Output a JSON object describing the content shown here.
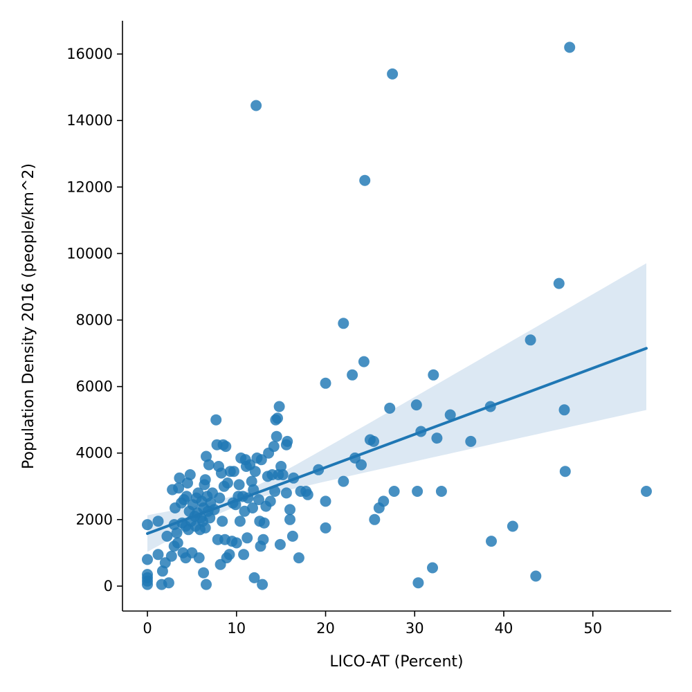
{
  "chart_data": {
    "type": "scatter",
    "title": "",
    "xlabel": "LICO-AT (Percent)",
    "ylabel": "Population Density 2016 (people/km^2)",
    "xlim": [
      -2.8,
      58.8
    ],
    "ylim": [
      -750,
      17000
    ],
    "xticks": [
      0,
      10,
      20,
      30,
      40,
      50
    ],
    "yticks": [
      0,
      2000,
      4000,
      6000,
      8000,
      10000,
      12000,
      14000,
      16000
    ],
    "grid": false,
    "legend": "none",
    "colors": {
      "points": "#1f77b4",
      "line": "#1f77b4",
      "band": "#dce8f3"
    },
    "series": [
      {
        "points": [
          [
            0,
            50
          ],
          [
            0,
            150
          ],
          [
            0,
            250
          ],
          [
            0,
            350
          ],
          [
            0,
            800
          ],
          [
            0,
            1850
          ],
          [
            1.2,
            950
          ],
          [
            1.2,
            1950
          ],
          [
            1.6,
            50
          ],
          [
            1.7,
            450
          ],
          [
            2,
            700
          ],
          [
            2.2,
            1500
          ],
          [
            2.4,
            100
          ],
          [
            2.7,
            900
          ],
          [
            2.8,
            2900
          ],
          [
            3,
            1200
          ],
          [
            3,
            1850
          ],
          [
            3.1,
            2350
          ],
          [
            3.3,
            1600
          ],
          [
            3.4,
            1300
          ],
          [
            3.5,
            2950
          ],
          [
            3.6,
            3250
          ],
          [
            3.8,
            2500
          ],
          [
            3.9,
            1900
          ],
          [
            4,
            1000
          ],
          [
            4.1,
            2600
          ],
          [
            4.3,
            850
          ],
          [
            4.3,
            1800
          ],
          [
            4.4,
            2700
          ],
          [
            4.5,
            3100
          ],
          [
            4.6,
            1700
          ],
          [
            4.7,
            2250
          ],
          [
            4.8,
            3350
          ],
          [
            4.9,
            1950
          ],
          [
            5,
            1000
          ],
          [
            5.1,
            2450
          ],
          [
            5.3,
            2100
          ],
          [
            5.4,
            1800
          ],
          [
            5.5,
            2650
          ],
          [
            5.6,
            2200
          ],
          [
            5.7,
            2800
          ],
          [
            5.8,
            850
          ],
          [
            5.9,
            1700
          ],
          [
            6,
            2050
          ],
          [
            6.1,
            2550
          ],
          [
            6.2,
            1950
          ],
          [
            6.3,
            400
          ],
          [
            6.3,
            2350
          ],
          [
            6.4,
            3050
          ],
          [
            6.5,
            1750
          ],
          [
            6.5,
            3200
          ],
          [
            6.6,
            3900
          ],
          [
            6.6,
            50
          ],
          [
            6.7,
            2700
          ],
          [
            6.8,
            2250
          ],
          [
            6.9,
            3650
          ],
          [
            7,
            2050
          ],
          [
            7.1,
            2500
          ],
          [
            7.3,
            2800
          ],
          [
            7.5,
            2300
          ],
          [
            7.7,
            5000
          ],
          [
            7.8,
            4250
          ],
          [
            7.9,
            1400
          ],
          [
            8,
            3600
          ],
          [
            8.1,
            2650
          ],
          [
            8.2,
            650
          ],
          [
            8.3,
            3400
          ],
          [
            8.4,
            1950
          ],
          [
            8.5,
            4250
          ],
          [
            8.6,
            3000
          ],
          [
            8.7,
            1400
          ],
          [
            8.8,
            4200
          ],
          [
            8.9,
            850
          ],
          [
            9,
            3100
          ],
          [
            9.2,
            950
          ],
          [
            9.3,
            3450
          ],
          [
            9.5,
            1350
          ],
          [
            9.6,
            2500
          ],
          [
            9.7,
            3450
          ],
          [
            9.9,
            2450
          ],
          [
            10,
            1300
          ],
          [
            10.2,
            2700
          ],
          [
            10.3,
            3050
          ],
          [
            10.4,
            1950
          ],
          [
            10.5,
            3850
          ],
          [
            10.7,
            2700
          ],
          [
            10.8,
            950
          ],
          [
            10.9,
            2250
          ],
          [
            11,
            3800
          ],
          [
            11.1,
            3600
          ],
          [
            11.2,
            1450
          ],
          [
            11.3,
            2650
          ],
          [
            11.5,
            3650
          ],
          [
            11.7,
            3150
          ],
          [
            11.8,
            2350
          ],
          [
            11.9,
            2900
          ],
          [
            12,
            250
          ],
          [
            12.1,
            3450
          ],
          [
            12.3,
            3850
          ],
          [
            12.5,
            2600
          ],
          [
            12.6,
            1950
          ],
          [
            12.7,
            1200
          ],
          [
            12.8,
            3800
          ],
          [
            12.9,
            50
          ],
          [
            13,
            1400
          ],
          [
            13.1,
            1900
          ],
          [
            13.3,
            2400
          ],
          [
            13.5,
            3300
          ],
          [
            13.6,
            4000
          ],
          [
            13.8,
            2550
          ],
          [
            14,
            3350
          ],
          [
            14.2,
            4200
          ],
          [
            14.3,
            2850
          ],
          [
            14.4,
            5000
          ],
          [
            14.5,
            4500
          ],
          [
            14.6,
            5050
          ],
          [
            14.7,
            3350
          ],
          [
            14.8,
            5400
          ],
          [
            14.9,
            1250
          ],
          [
            15,
            3600
          ],
          [
            15.2,
            3350
          ],
          [
            15.6,
            2800
          ],
          [
            15.6,
            4250
          ],
          [
            15.7,
            4350
          ],
          [
            16,
            2000
          ],
          [
            16,
            2300
          ],
          [
            16.3,
            1500
          ],
          [
            16.4,
            3250
          ],
          [
            17,
            850
          ],
          [
            17.2,
            2850
          ],
          [
            17.8,
            2850
          ],
          [
            18,
            2750
          ],
          [
            19.2,
            3500
          ],
          [
            20,
            6100
          ],
          [
            20,
            2550
          ],
          [
            20,
            1750
          ],
          [
            22,
            7900
          ],
          [
            22,
            3150
          ],
          [
            23,
            6350
          ],
          [
            23.3,
            3850
          ],
          [
            24,
            3650
          ],
          [
            24.3,
            6750
          ],
          [
            25,
            4400
          ],
          [
            25.4,
            4350
          ],
          [
            25.5,
            2000
          ],
          [
            26,
            2350
          ],
          [
            26.5,
            2550
          ],
          [
            27.2,
            5350
          ],
          [
            27.7,
            2850
          ],
          [
            30.2,
            5450
          ],
          [
            30.3,
            2850
          ],
          [
            30.4,
            100
          ],
          [
            30.7,
            4650
          ],
          [
            32,
            550
          ],
          [
            32.1,
            6350
          ],
          [
            32.5,
            4450
          ],
          [
            33,
            2850
          ],
          [
            34,
            5150
          ],
          [
            36.3,
            4350
          ],
          [
            38.5,
            5400
          ],
          [
            38.6,
            1350
          ],
          [
            41,
            1800
          ],
          [
            43,
            7400
          ],
          [
            43.6,
            300
          ],
          [
            46.2,
            9100
          ],
          [
            46.8,
            5300
          ],
          [
            46.9,
            3450
          ],
          [
            56,
            2850
          ],
          [
            12.2,
            14450
          ],
          [
            24.4,
            12200
          ],
          [
            27.5,
            15400
          ],
          [
            47.4,
            16200
          ]
        ]
      }
    ],
    "regression": {
      "x": [
        0,
        56
      ],
      "y": [
        1580,
        7150
      ],
      "ci_lower": [
        1050,
        5300
      ],
      "ci_upper": [
        2100,
        9700
      ],
      "ci_min_x": 10
    }
  }
}
